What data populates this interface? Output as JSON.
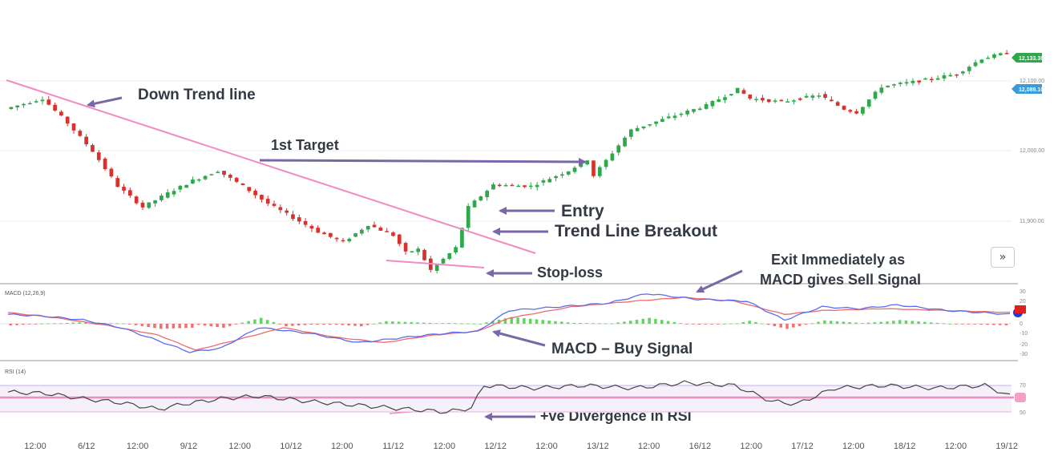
{
  "chart_data": {
    "type": "candlestick",
    "x_tick_labels": [
      "12:00",
      "6/12",
      "12:00",
      "9/12",
      "12:00",
      "10/12",
      "12:00",
      "11/12",
      "12:00",
      "12/12",
      "12:00",
      "13/12",
      "12:00",
      "16/12",
      "12:00",
      "17/12",
      "12:00",
      "18/12",
      "12:00",
      "19/12"
    ],
    "price_axis": {
      "ticks": [
        "12,100.00",
        "12,000.00",
        "11,900.00"
      ],
      "ylim": [
        11840,
        12150
      ]
    },
    "last_prices": {
      "bid": "12,133.30",
      "ask": "12,089.10"
    },
    "price_segments": [
      [
        0,
        12060
      ],
      [
        6,
        12075
      ],
      [
        10,
        12040
      ],
      [
        14,
        12000
      ],
      [
        18,
        11950
      ],
      [
        22,
        11920
      ],
      [
        26,
        11940
      ],
      [
        30,
        11958
      ],
      [
        34,
        11972
      ],
      [
        38,
        11950
      ],
      [
        42,
        11925
      ],
      [
        46,
        11905
      ],
      [
        50,
        11885
      ],
      [
        54,
        11870
      ],
      [
        58,
        11895
      ],
      [
        62,
        11880
      ],
      [
        64,
        11855
      ],
      [
        66,
        11860
      ],
      [
        68,
        11830
      ],
      [
        72,
        11862
      ],
      [
        74,
        11920
      ],
      [
        78,
        11952
      ],
      [
        84,
        11950
      ],
      [
        90,
        11972
      ],
      [
        93,
        11988
      ],
      [
        94,
        11965
      ],
      [
        100,
        12030
      ],
      [
        106,
        12048
      ],
      [
        112,
        12065
      ],
      [
        117,
        12088
      ],
      [
        119,
        12075
      ],
      [
        124,
        12070
      ],
      [
        130,
        12080
      ],
      [
        134,
        12060
      ],
      [
        136,
        12055
      ],
      [
        140,
        12092
      ],
      [
        146,
        12100
      ],
      [
        152,
        12110
      ],
      [
        156,
        12132
      ],
      [
        160,
        12140
      ]
    ],
    "macd": {
      "title": "MACD (12,26,9)",
      "ticks": [
        "30",
        "20",
        "10",
        "0",
        "-10",
        "-20",
        "-30"
      ],
      "ylim": [
        -34,
        34
      ],
      "macd_line": [
        [
          0,
          10
        ],
        [
          6,
          8
        ],
        [
          12,
          4
        ],
        [
          18,
          -4
        ],
        [
          24,
          -18
        ],
        [
          29,
          -30
        ],
        [
          34,
          -26
        ],
        [
          40,
          -4
        ],
        [
          48,
          -10
        ],
        [
          56,
          -20
        ],
        [
          64,
          -14
        ],
        [
          70,
          -10
        ],
        [
          75,
          -8
        ],
        [
          80,
          14
        ],
        [
          88,
          18
        ],
        [
          96,
          22
        ],
        [
          102,
          32
        ],
        [
          110,
          26
        ],
        [
          118,
          24
        ],
        [
          124,
          4
        ],
        [
          130,
          18
        ],
        [
          136,
          16
        ],
        [
          142,
          20
        ],
        [
          150,
          14
        ],
        [
          160,
          10
        ]
      ],
      "signal_line": [
        [
          0,
          12
        ],
        [
          8,
          6
        ],
        [
          16,
          -2
        ],
        [
          24,
          -12
        ],
        [
          30,
          -28
        ],
        [
          36,
          -18
        ],
        [
          44,
          -4
        ],
        [
          52,
          -14
        ],
        [
          60,
          -20
        ],
        [
          68,
          -12
        ],
        [
          75,
          -8
        ],
        [
          80,
          6
        ],
        [
          90,
          18
        ],
        [
          100,
          24
        ],
        [
          108,
          28
        ],
        [
          116,
          24
        ],
        [
          124,
          10
        ],
        [
          130,
          14
        ],
        [
          140,
          16
        ],
        [
          150,
          14
        ],
        [
          160,
          12
        ]
      ]
    },
    "rsi": {
      "title": "RSI (14)",
      "ticks": [
        "70",
        "50"
      ],
      "ylim": [
        35,
        80
      ],
      "levels": {
        "upper": 70,
        "lower": 50,
        "mid": 60
      },
      "rsi_line": [
        [
          0,
          65
        ],
        [
          6,
          64
        ],
        [
          12,
          60
        ],
        [
          18,
          57
        ],
        [
          24,
          52
        ],
        [
          28,
          56
        ],
        [
          34,
          60
        ],
        [
          40,
          62
        ],
        [
          48,
          58
        ],
        [
          56,
          55
        ],
        [
          64,
          52
        ],
        [
          70,
          50
        ],
        [
          74,
          53
        ],
        [
          76,
          70
        ],
        [
          84,
          68
        ],
        [
          92,
          70
        ],
        [
          100,
          68
        ],
        [
          108,
          72
        ],
        [
          116,
          70
        ],
        [
          122,
          58
        ],
        [
          126,
          56
        ],
        [
          132,
          68
        ],
        [
          140,
          70
        ],
        [
          148,
          68
        ],
        [
          156,
          70
        ],
        [
          160,
          62
        ]
      ]
    }
  },
  "annotations": {
    "down_trend": "Down Trend line",
    "first_target": "1st Target",
    "entry": "Entry",
    "breakout": "Trend Line Breakout",
    "stop_loss": "Stop-loss",
    "exit_line1": "Exit Immediately as",
    "exit_line2": "MACD gives Sell Signal",
    "macd_buy": "MACD – Buy Signal",
    "rsi_div": "+ve Divergence in RSI"
  },
  "colors": {
    "up": "#2ea84a",
    "down": "#d8322e",
    "trend": "#f08cc0",
    "arrow": "#7a67a8",
    "macd": "#5b6cf0",
    "signal": "#f06a6a"
  },
  "ui": {
    "expand_icon": "»"
  }
}
